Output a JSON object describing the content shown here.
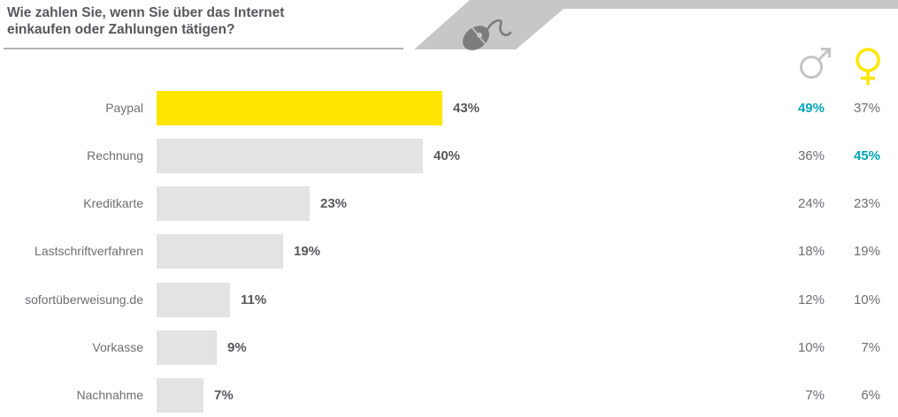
{
  "header": {
    "title_line1": "Wie zahlen Sie, wenn Sie über das Internet",
    "title_line2": "einkaufen oder Zahlungen tätigen?",
    "banner_icon": "computer-mouse-icon",
    "column_icons": [
      "male-symbol-icon",
      "female-symbol-icon"
    ]
  },
  "colors": {
    "title_text": "#58585a",
    "label_text": "#6d6e71",
    "value_text": "#58585a",
    "highlight_text": "#00a6b8",
    "bar_default": "#e3e3e3",
    "bar_highlight": "#ffe600",
    "banner": "#c7c7c7",
    "banner_icon": "#7c7c7c",
    "male_icon": "#c4c4c4",
    "female_icon": "#ffe600",
    "underline": "#b3b3b3"
  },
  "chart_data": {
    "type": "bar",
    "orientation": "horizontal",
    "title": "Wie zahlen Sie, wenn Sie über das Internet einkaufen oder Zahlungen tätigen?",
    "value_unit": "%",
    "axis": "none",
    "xlim": [
      0,
      50
    ],
    "categories": [
      "Paypal",
      "Rechnung",
      "Kreditkarte",
      "Lastschriftverfahren",
      "sofortüberweisung.de",
      "Vorkasse",
      "Nachnahme"
    ],
    "series": [
      {
        "name": "total",
        "values": [
          43,
          40,
          23,
          19,
          11,
          9,
          7
        ]
      },
      {
        "name": "male",
        "values": [
          49,
          36,
          24,
          18,
          12,
          10,
          7
        ]
      },
      {
        "name": "female",
        "values": [
          37,
          45,
          23,
          19,
          10,
          7,
          6
        ]
      }
    ],
    "highlighted_bar_category": "Paypal",
    "highlighted_values": [
      {
        "category": "Paypal",
        "series": "male",
        "value": 49
      },
      {
        "category": "Rechnung",
        "series": "female",
        "value": 45
      }
    ]
  }
}
